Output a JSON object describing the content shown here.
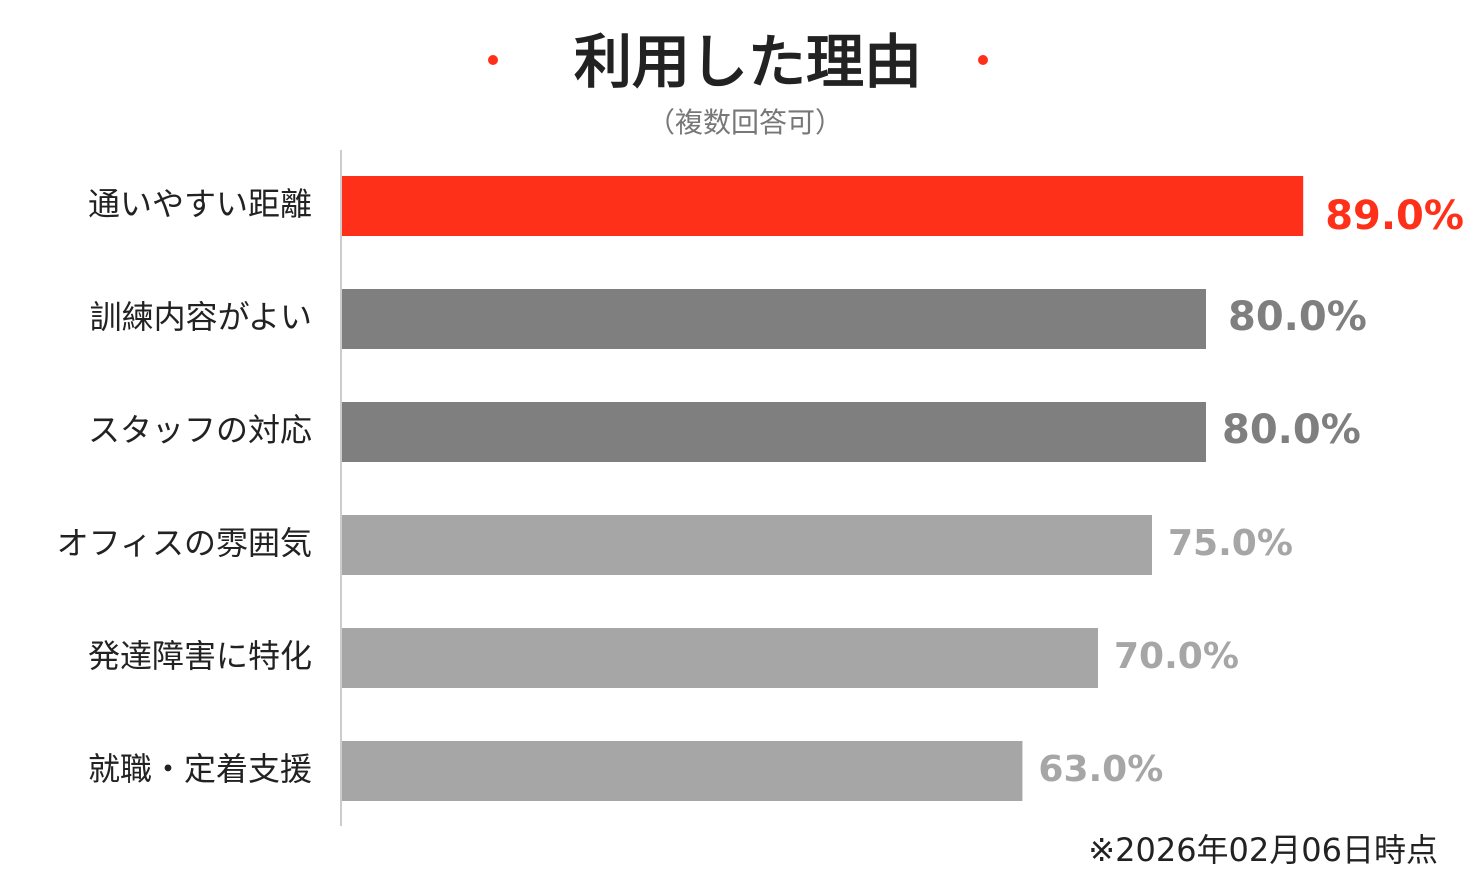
{
  "chart_data": {
    "type": "bar",
    "orientation": "horizontal",
    "title": "利用した理由",
    "subtitle": "（複数回答可）",
    "note": "※2026年02月06日時点",
    "categories": [
      "通いやすい距離",
      "訓練内容がよい",
      "スタッフの対応",
      "オフィスの雰囲気",
      "発達障害に特化",
      "就職・定着支援"
    ],
    "values": [
      89,
      80,
      80,
      75,
      70,
      63
    ],
    "value_labels": [
      "89.0%",
      "80.0%",
      "80.0%",
      "75.0%",
      "70.0%",
      "63.0%"
    ],
    "colors": [
      "#ff3019",
      "#7f7f7f",
      "#7f7f7f",
      "#a6a6a6",
      "#a6a6a6",
      "#a6a6a6"
    ],
    "xlim": [
      0,
      100
    ]
  }
}
